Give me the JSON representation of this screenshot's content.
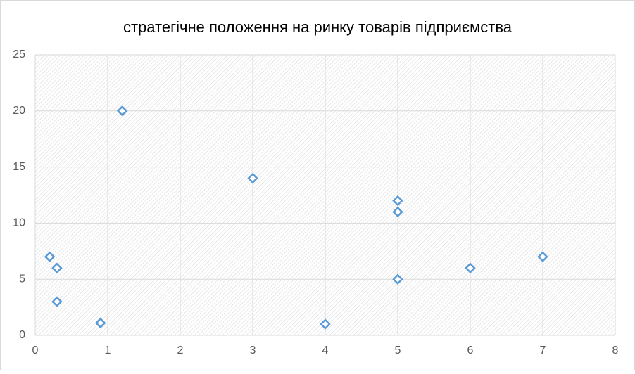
{
  "chart_data": {
    "type": "scatter",
    "title": "стратегічне положення на ринку товарів підприємства",
    "x": [
      0.2,
      0.3,
      0.3,
      0.9,
      1.2,
      3,
      4,
      5,
      5,
      5,
      6,
      7
    ],
    "values": [
      7,
      6,
      3,
      1.1,
      20,
      14,
      1,
      12,
      11,
      5,
      6,
      7
    ],
    "color": "#5b9bd5",
    "xlim": [
      0,
      8
    ],
    "xticks": [
      0,
      1,
      2,
      3,
      4,
      5,
      6,
      7,
      8
    ],
    "ylim": [
      0,
      25
    ],
    "yticks": [
      0,
      5,
      10,
      15,
      20,
      25
    ],
    "grid": true
  }
}
